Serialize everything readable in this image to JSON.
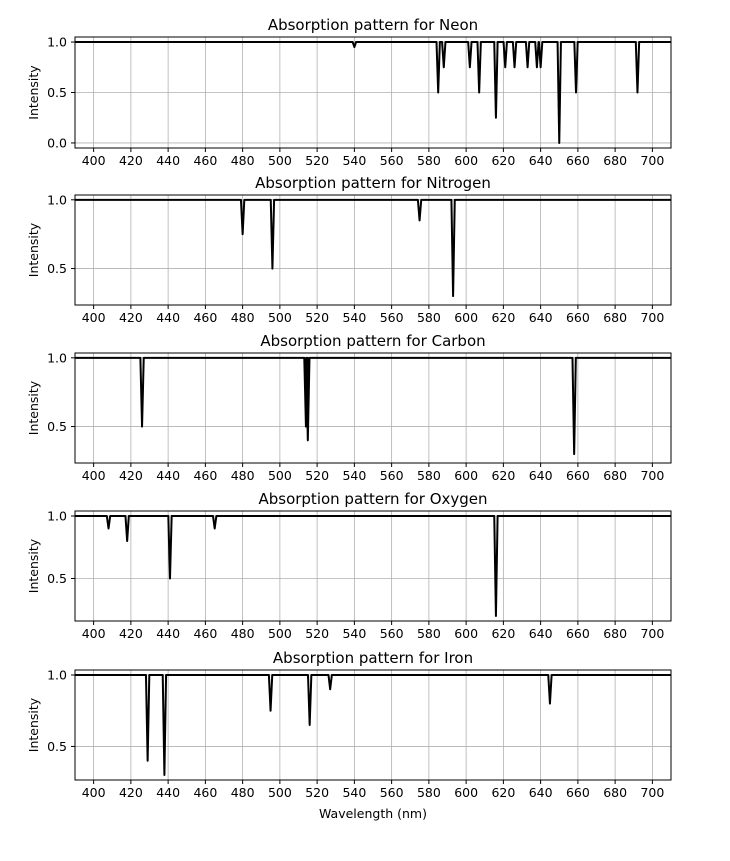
{
  "chart_data": [
    {
      "type": "line",
      "title": "Absorption pattern for Neon",
      "xlabel": "",
      "ylabel": "Intensity",
      "xlim": [
        390,
        710
      ],
      "ylim": [
        -0.05,
        1.05
      ],
      "yticks": [
        0.0,
        0.5,
        1.0
      ],
      "ytick_labels": [
        "0.0",
        "0.5",
        "1.0"
      ],
      "grid": true,
      "lines": [
        {
          "wavelength": 540,
          "depth": 0.05
        },
        {
          "wavelength": 585,
          "depth": 0.5
        },
        {
          "wavelength": 588,
          "depth": 0.25
        },
        {
          "wavelength": 602,
          "depth": 0.25
        },
        {
          "wavelength": 607,
          "depth": 0.5
        },
        {
          "wavelength": 616,
          "depth": 0.75
        },
        {
          "wavelength": 621,
          "depth": 0.25
        },
        {
          "wavelength": 626,
          "depth": 0.25
        },
        {
          "wavelength": 633,
          "depth": 0.25
        },
        {
          "wavelength": 638,
          "depth": 0.25
        },
        {
          "wavelength": 640,
          "depth": 0.25
        },
        {
          "wavelength": 650,
          "depth": 1.0
        },
        {
          "wavelength": 659,
          "depth": 0.5
        },
        {
          "wavelength": 692,
          "depth": 0.5
        }
      ]
    },
    {
      "type": "line",
      "title": "Absorption pattern for Nitrogen",
      "xlabel": "",
      "ylabel": "Intensity",
      "xlim": [
        390,
        710
      ],
      "ylim": [
        0.235,
        1.035
      ],
      "yticks": [
        0.5,
        1.0
      ],
      "ytick_labels": [
        "0.5",
        "1.0"
      ],
      "grid": true,
      "lines": [
        {
          "wavelength": 480,
          "depth": 0.25
        },
        {
          "wavelength": 496,
          "depth": 0.5
        },
        {
          "wavelength": 575,
          "depth": 0.15
        },
        {
          "wavelength": 593,
          "depth": 0.7
        }
      ]
    },
    {
      "type": "line",
      "title": "Absorption pattern for Carbon",
      "xlabel": "",
      "ylabel": "Intensity",
      "xlim": [
        390,
        710
      ],
      "ylim": [
        0.235,
        1.035
      ],
      "yticks": [
        0.5,
        1.0
      ],
      "ytick_labels": [
        "0.5",
        "1.0"
      ],
      "grid": true,
      "lines": [
        {
          "wavelength": 426,
          "depth": 0.5
        },
        {
          "wavelength": 514,
          "depth": 0.5
        },
        {
          "wavelength": 515,
          "depth": 0.6
        },
        {
          "wavelength": 658,
          "depth": 0.7
        }
      ]
    },
    {
      "type": "line",
      "title": "Absorption pattern for Oxygen",
      "xlabel": "",
      "ylabel": "Intensity",
      "xlim": [
        390,
        710
      ],
      "ylim": [
        0.16,
        1.04
      ],
      "yticks": [
        0.5,
        1.0
      ],
      "ytick_labels": [
        "0.5",
        "1.0"
      ],
      "grid": true,
      "lines": [
        {
          "wavelength": 408,
          "depth": 0.1
        },
        {
          "wavelength": 418,
          "depth": 0.2
        },
        {
          "wavelength": 441,
          "depth": 0.5
        },
        {
          "wavelength": 465,
          "depth": 0.1
        },
        {
          "wavelength": 616,
          "depth": 0.8
        }
      ]
    },
    {
      "type": "line",
      "title": "Absorption pattern for Iron",
      "xlabel": "Wavelength (nm)",
      "ylabel": "Intensity",
      "xlim": [
        390,
        710
      ],
      "ylim": [
        0.265,
        1.035
      ],
      "yticks": [
        0.5,
        1.0
      ],
      "ytick_labels": [
        "0.5",
        "1.0"
      ],
      "grid": true,
      "lines": [
        {
          "wavelength": 429,
          "depth": 0.6
        },
        {
          "wavelength": 438,
          "depth": 0.7
        },
        {
          "wavelength": 495,
          "depth": 0.25
        },
        {
          "wavelength": 516,
          "depth": 0.35
        },
        {
          "wavelength": 527,
          "depth": 0.1
        },
        {
          "wavelength": 645,
          "depth": 0.2
        }
      ]
    }
  ],
  "xticks": [
    400,
    420,
    440,
    460,
    480,
    500,
    520,
    540,
    560,
    580,
    600,
    620,
    640,
    660,
    680,
    700
  ],
  "xtick_labels": [
    "400",
    "420",
    "440",
    "460",
    "480",
    "500",
    "520",
    "540",
    "560",
    "580",
    "600",
    "620",
    "640",
    "660",
    "680",
    "700"
  ]
}
